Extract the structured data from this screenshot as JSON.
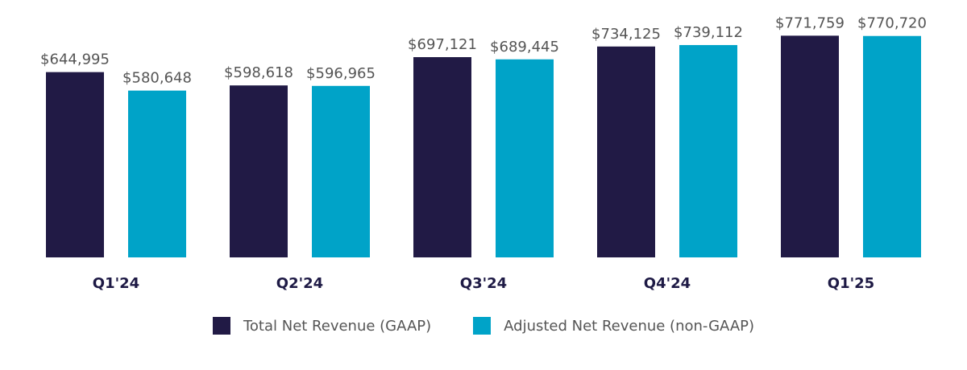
{
  "chart_data": {
    "type": "bar",
    "title": "",
    "xlabel": "",
    "ylabel": "",
    "ylim": [
      0,
      800000
    ],
    "grid": false,
    "categories": [
      "Q1'24",
      "Q2'24",
      "Q3'24",
      "Q4'24",
      "Q1'25"
    ],
    "series": [
      {
        "name": "Total Net Revenue (GAAP)",
        "color": "#211a45",
        "values": [
          644995,
          598618,
          697121,
          734125,
          771759
        ],
        "labels": [
          "$644,995",
          "$598,618",
          "$697,121",
          "$734,125",
          "$771,759"
        ]
      },
      {
        "name": "Adjusted Net Revenue (non-GAAP)",
        "color": "#00a3c8",
        "values": [
          580648,
          596965,
          689445,
          739112,
          770720
        ],
        "labels": [
          "$580,648",
          "$596,965",
          "$689,445",
          "$739,112",
          "$770,720"
        ]
      }
    ],
    "legend_position": "bottom"
  }
}
